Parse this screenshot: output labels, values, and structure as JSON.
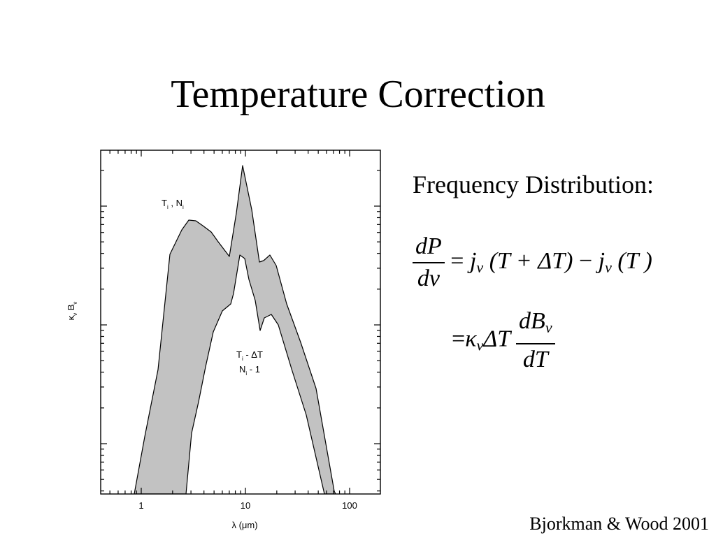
{
  "slide": {
    "title": "Temperature Correction",
    "heading": "Frequency Distribution:",
    "citation": "Bjorkman & Wood 2001"
  },
  "equation": {
    "line1_num": "dP",
    "line1_den": "dν",
    "line1_rhs": {
      "eq": "=",
      "j": "j",
      "nu": "ν",
      "arg1": "(T + ΔT)",
      "minus": "−",
      "arg2": "(T )"
    },
    "line2_lhs": {
      "eq": "=",
      "kappa": "κ",
      "nu": "ν",
      "dt": "ΔT"
    },
    "line2_num": "dB",
    "line2_num_sub": "ν",
    "line2_den": "dT"
  },
  "chart_data": {
    "type": "area",
    "x_scale": "log",
    "x_ticks": [
      1,
      10,
      100
    ],
    "x_tick_labels": [
      "1",
      "10",
      "100"
    ],
    "xlabel": "λ (μm)",
    "ylabel": "κν Bν",
    "y_axis_numbered": false,
    "annotations": [
      {
        "text": "Ti , Ni",
        "x": 4
      },
      {
        "text": "Ti - ΔT",
        "x": 15
      },
      {
        "text": "Ni - 1",
        "x": 15
      }
    ],
    "upper_curve_x": [
      0.88,
      1.2,
      1.6,
      2.1,
      2.8,
      3.5,
      4.5,
      5.6,
      6.8,
      8.0,
      8.7,
      9.5,
      10.0,
      11.0,
      12.8,
      14.0,
      15.5,
      17.5,
      19.0,
      25,
      35,
      50,
      75
    ]
  }
}
